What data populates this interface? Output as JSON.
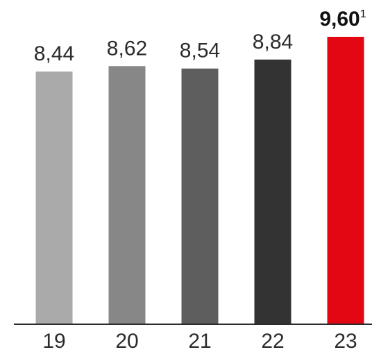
{
  "chart_data": {
    "type": "bar",
    "categories": [
      "19",
      "20",
      "21",
      "22",
      "23"
    ],
    "values": [
      8.44,
      8.62,
      8.54,
      8.84,
      9.6
    ],
    "value_labels": [
      "8,44",
      "8,62",
      "8,54",
      "8,84",
      "9,60"
    ],
    "highlight_index": 4,
    "highlight_footnote": "1",
    "colors": [
      "#aaaaaa",
      "#878787",
      "#5e5e5e",
      "#333333",
      "#e30613"
    ],
    "axis_color": "#2b2b2b",
    "title": "",
    "xlabel": "",
    "ylabel": "",
    "ylim": [
      0,
      9.6
    ],
    "grid": false,
    "legend": "none"
  }
}
